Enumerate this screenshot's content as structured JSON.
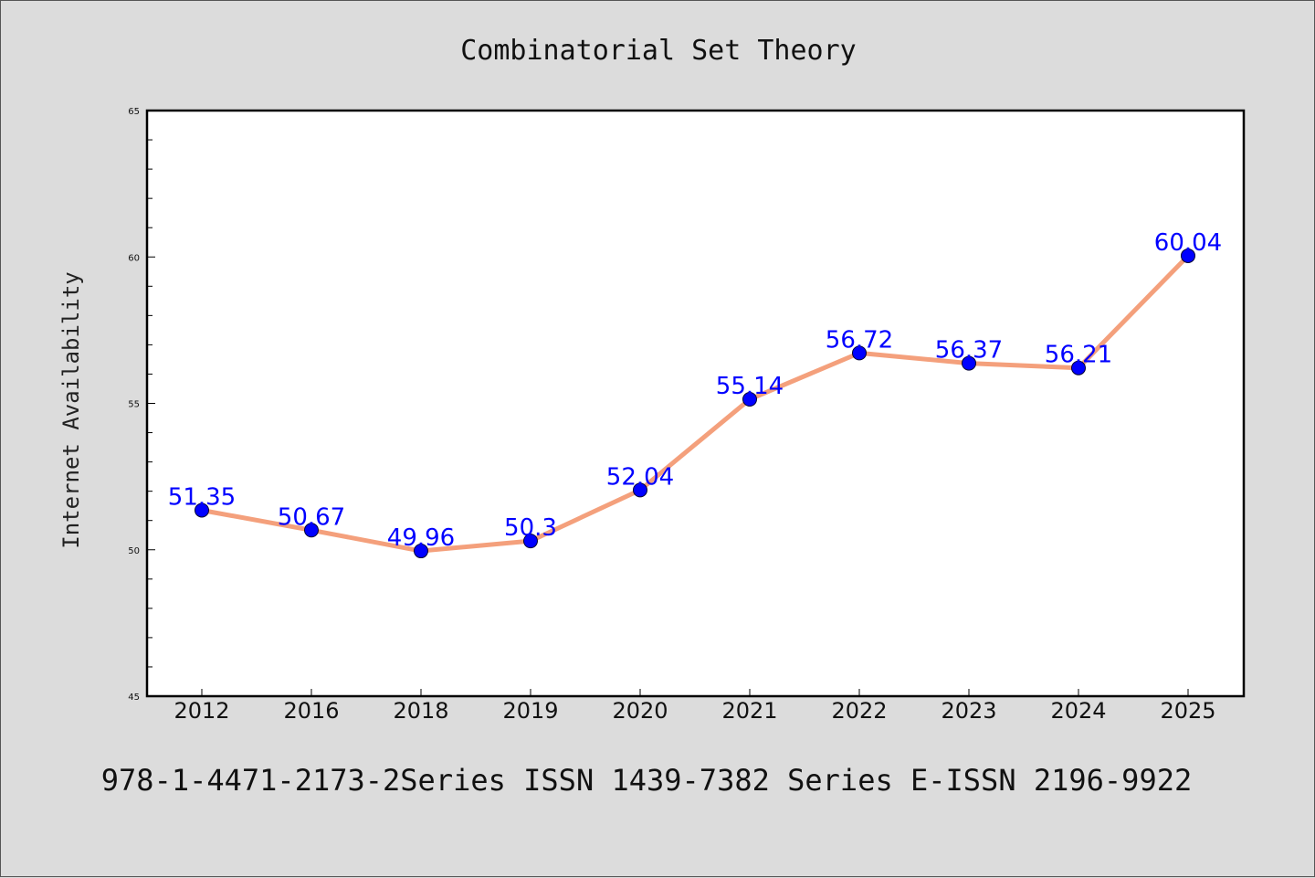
{
  "chart_data": {
    "type": "line",
    "title": "Combinatorial Set Theory",
    "ylabel": "Internet Availability",
    "xlabel": "",
    "categories": [
      "2012",
      "2016",
      "2018",
      "2019",
      "2020",
      "2021",
      "2022",
      "2023",
      "2024",
      "2025"
    ],
    "values": [
      51.35,
      50.67,
      49.96,
      50.3,
      52.04,
      55.14,
      56.72,
      56.37,
      56.21,
      60.04
    ],
    "data_labels": [
      "51.35",
      "50.67",
      "49.96",
      "50.3",
      "52.04",
      "55.14",
      "56.72",
      "56.37",
      "56.21",
      "60.04"
    ],
    "ylim": [
      45,
      65
    ],
    "yticks": [
      "45",
      "50",
      "55",
      "60",
      "65"
    ],
    "line_color": "#f4a07c",
    "marker_color": "#0000ff",
    "label_color": "#0000ff",
    "grid": false,
    "legend": false
  },
  "footer": "978-1-4471-2173-2Series ISSN 1439-7382 Series E-ISSN 2196-9922"
}
